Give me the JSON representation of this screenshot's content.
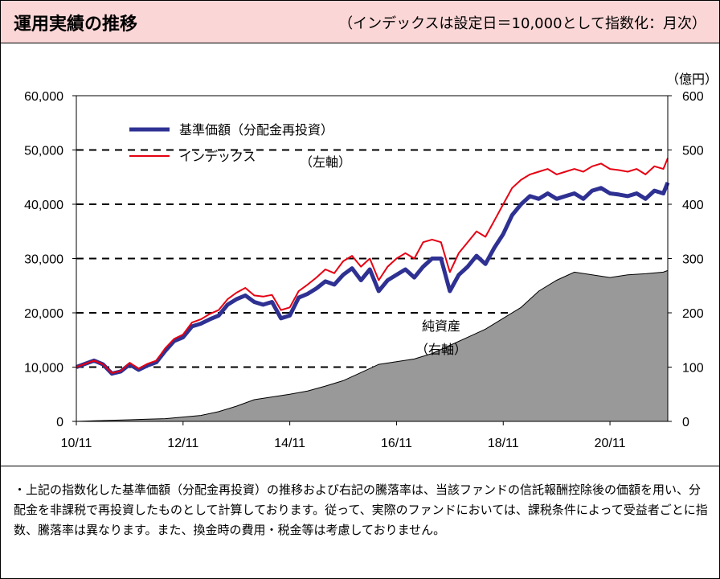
{
  "header": {
    "title": "運用実績の推移",
    "subtitle": "（インデックスは設定日＝10,000として指数化：月次）"
  },
  "note": "・上記の指数化した基準価額（分配金再投資）の推移および右記の騰落率は、当該ファンドの信託報酬控除後の価額を用い、分配金を非課税で再投資したものとして計算しております。従って、実際のファンドにおいては、課税条件によって受益者ごとに指数、騰落率は異なります。また、換金時の費用・税金等は考慮しておりません。",
  "colors": {
    "nav": "#2e3192",
    "index": "#e60012",
    "assets": "#999999",
    "header_bg": "#fbd6d6"
  },
  "chart_data": {
    "type": "line",
    "x_ticks": [
      "10/11",
      "12/11",
      "14/11",
      "16/11",
      "18/11",
      "20/11"
    ],
    "x_range": [
      "2010/11",
      "2021/12"
    ],
    "left_axis": {
      "ylim": [
        0,
        60000
      ],
      "ticks": [
        "0",
        "10,000",
        "20,000",
        "30,000",
        "40,000",
        "50,000",
        "60,000"
      ],
      "annotation": "（左軸）"
    },
    "right_axis": {
      "ylim": [
        0,
        600
      ],
      "ticks": [
        "0",
        "100",
        "200",
        "300",
        "400",
        "500",
        "600"
      ],
      "unit": "（億円）",
      "annotation": "（右軸）"
    },
    "grid": "dashed horizontal",
    "legend_position": "top-left",
    "series": [
      {
        "name": "基準価額（分配金再投資）",
        "axis": "left",
        "kind": "line",
        "x": [
          0,
          2,
          4,
          6,
          8,
          10,
          12,
          14,
          16,
          18,
          20,
          22,
          24,
          26,
          28,
          30,
          32,
          34,
          36,
          38,
          40,
          42,
          44,
          46,
          48,
          50,
          52,
          54,
          56,
          58,
          60,
          62,
          64,
          66,
          68,
          70,
          72,
          74,
          76,
          78,
          80,
          82,
          84,
          86,
          88,
          90,
          92,
          94,
          96,
          98,
          100,
          102,
          104,
          106,
          108,
          110,
          112,
          114,
          116,
          118,
          120,
          122,
          124,
          126,
          128,
          130,
          132,
          133
        ],
        "values": [
          10000,
          10600,
          11200,
          10500,
          8800,
          9200,
          10500,
          9500,
          10300,
          10900,
          13000,
          14800,
          15500,
          17500,
          18000,
          18800,
          19500,
          21500,
          22500,
          23200,
          22000,
          21500,
          22000,
          19000,
          19500,
          22800,
          23500,
          24500,
          25800,
          25200,
          27000,
          28200,
          26000,
          28000,
          24000,
          26000,
          27000,
          28000,
          26500,
          28500,
          30000,
          30000,
          24000,
          27000,
          28500,
          30500,
          29000,
          32000,
          34500,
          38000,
          40000,
          41500,
          41000,
          42000,
          41000,
          41500,
          42000,
          41000,
          42500,
          43000,
          42000,
          41800,
          41500,
          42000,
          41000,
          42500,
          42000,
          44000
        ]
      },
      {
        "name": "インデックス",
        "axis": "left",
        "kind": "line",
        "x": [
          0,
          2,
          4,
          6,
          8,
          10,
          12,
          14,
          16,
          18,
          20,
          22,
          24,
          26,
          28,
          30,
          32,
          34,
          36,
          38,
          40,
          42,
          44,
          46,
          48,
          50,
          52,
          54,
          56,
          58,
          60,
          62,
          64,
          66,
          68,
          70,
          72,
          74,
          76,
          78,
          80,
          82,
          84,
          86,
          88,
          90,
          92,
          94,
          96,
          98,
          100,
          102,
          104,
          106,
          108,
          110,
          112,
          114,
          116,
          118,
          120,
          122,
          124,
          126,
          128,
          130,
          132,
          133
        ],
        "values": [
          10000,
          10600,
          11200,
          10500,
          8900,
          9300,
          10800,
          9700,
          10600,
          11200,
          13500,
          15200,
          16000,
          18200,
          18800,
          19800,
          20500,
          22500,
          23700,
          24600,
          23200,
          23000,
          23300,
          20500,
          21000,
          24000,
          25200,
          26500,
          28000,
          27300,
          29500,
          30500,
          28500,
          30000,
          26000,
          28500,
          30000,
          31000,
          30000,
          33000,
          33500,
          33000,
          27500,
          31000,
          33000,
          35000,
          34000,
          37000,
          40000,
          43000,
          44500,
          45500,
          46000,
          46500,
          45500,
          46000,
          46500,
          46000,
          47000,
          47500,
          46500,
          46300,
          46000,
          46500,
          45500,
          47000,
          46500,
          48500
        ]
      },
      {
        "name": "純資産",
        "axis": "right",
        "kind": "area",
        "x": [
          0,
          4,
          8,
          12,
          16,
          20,
          24,
          28,
          32,
          36,
          40,
          44,
          48,
          52,
          56,
          60,
          64,
          68,
          72,
          76,
          80,
          84,
          88,
          92,
          96,
          100,
          104,
          108,
          112,
          116,
          120,
          124,
          128,
          132,
          133
        ],
        "values": [
          0,
          1,
          2,
          3,
          4,
          5,
          8,
          11,
          18,
          28,
          40,
          45,
          50,
          56,
          65,
          75,
          90,
          105,
          110,
          115,
          125,
          140,
          155,
          170,
          190,
          210,
          240,
          260,
          275,
          270,
          265,
          270,
          272,
          275,
          278
        ]
      }
    ]
  }
}
